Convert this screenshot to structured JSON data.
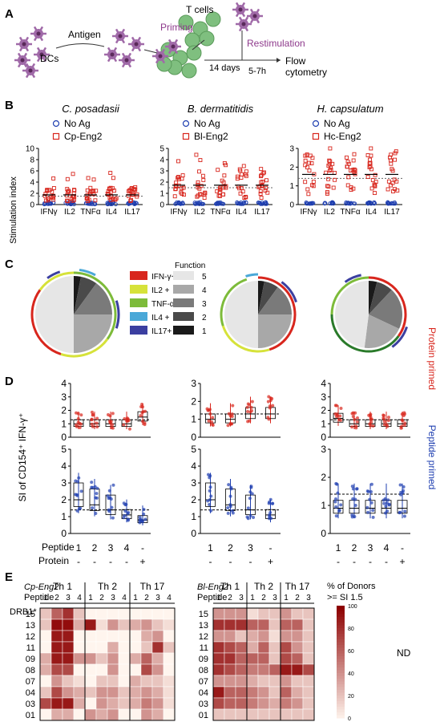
{
  "colors": {
    "red": "#d8261d",
    "blue": "#1f3fb0",
    "purple": "#8e3a8c",
    "green": "#6a9a2a",
    "dc": "#a06aa8",
    "tcell": "#7fbf7f"
  },
  "panel_a": {
    "label": "A",
    "dcs": "DCs",
    "antigen": "Antigen",
    "priming": "Priming",
    "tcells": "T cells",
    "restimulation": "Restimulation",
    "days14": "14 days",
    "hours": "5-7h",
    "flow1": "Flow",
    "flow2": "cytometry"
  },
  "panel_b": {
    "label": "B",
    "ylabel": "Stimulation index",
    "categories": [
      "IFNγ",
      "IL2",
      "TNFα",
      "IL4",
      "IL17"
    ],
    "noag": "No Ag",
    "charts": [
      {
        "title": "C. posadasii",
        "antigen": "Cp-Eng2",
        "ymax": 10,
        "ticks": [
          "0",
          "2",
          "4",
          "6",
          "8",
          "10"
        ],
        "threshold": 1.5
      },
      {
        "title": "B. dermatitidis",
        "antigen": "Bl-Eng2",
        "ymax": 5,
        "ticks": [
          "0",
          "1",
          "2",
          "3",
          "4",
          "5"
        ],
        "threshold": 1.5
      },
      {
        "title": "H. capsulatum",
        "antigen": "Hc-Eng2",
        "ymax": 3,
        "ticks": [
          "0",
          "1",
          "2",
          "3"
        ],
        "threshold": 1.4
      }
    ]
  },
  "panel_c": {
    "label": "C",
    "legend": [
      "IFN-γ+",
      "IL2 +",
      "TNF-α+",
      "IL4 +",
      "IL17+"
    ],
    "legend_colors": [
      "#d8261d",
      "#d6e23a",
      "#7dbb3a",
      "#4aa8d8",
      "#3b3fa0"
    ],
    "function_title": "Function",
    "function_levels": [
      "5",
      "4",
      "3",
      "2",
      "1"
    ],
    "function_colors": [
      "#1a1a1a",
      "#4a4a4a",
      "#7a7a7a",
      "#a8a8a8",
      "#e6e6e6"
    ]
  },
  "panel_d": {
    "label": "D",
    "ylabel": "SI  of CD154⁺ IFN-γ⁺",
    "protein_primed": "Protein primed",
    "peptide_primed": "Peptide primed",
    "peptide_label": "Peptide",
    "protein_label": "Protein",
    "charts": [
      {
        "peptide": [
          "1",
          "2",
          "3",
          "4",
          "-"
        ],
        "protein": [
          "-",
          "-",
          "-",
          "-",
          "+"
        ],
        "top_ticks": [
          "0",
          "1",
          "2",
          "3",
          "4"
        ],
        "bot_ticks": [
          "0",
          "1",
          "2",
          "3",
          "4",
          "5"
        ]
      },
      {
        "peptide": [
          "1",
          "2",
          "3",
          "-"
        ],
        "protein": [
          "-",
          "-",
          "-",
          "+"
        ],
        "top_ticks": [
          "0",
          "1",
          "2",
          "3"
        ],
        "bot_ticks": [
          "0",
          "1",
          "2",
          "3",
          "4",
          "5"
        ]
      },
      {
        "peptide": [
          "1",
          "2",
          "3",
          "4",
          "-"
        ],
        "protein": [
          "-",
          "-",
          "-",
          "-",
          "+"
        ],
        "top_ticks": [
          "0",
          "1",
          "2",
          "3",
          "4"
        ],
        "bot_ticks": [
          "0",
          "1",
          "2",
          "3"
        ]
      }
    ]
  },
  "panel_e": {
    "label": "E",
    "left_title": "Cp-Eng2",
    "right_title": "Bl-Eng2",
    "th_groups": [
      "Th 1",
      "Th 2",
      "Th 17"
    ],
    "peptide_label": "Peptide",
    "drb_label": "DRB1*",
    "left_peptides": [
      "1",
      "2",
      "3",
      "4"
    ],
    "right_peptides": [
      "1",
      "2",
      "3"
    ],
    "alleles": [
      "15",
      "13",
      "12",
      "11",
      "09",
      "08",
      "07",
      "04",
      "03",
      "01"
    ],
    "colorbar_title1": "% of Donors",
    "colorbar_title2": ">= SI 1.5",
    "colorbar_ticks": [
      "100",
      "80",
      "60",
      "40",
      "20",
      "0"
    ],
    "nd": "ND",
    "left_matrix": [
      [
        20,
        60,
        80,
        20,
        0,
        0,
        0,
        0,
        0,
        0,
        0,
        0
      ],
      [
        20,
        95,
        95,
        30,
        90,
        10,
        40,
        20,
        30,
        40,
        20,
        10
      ],
      [
        0,
        90,
        90,
        0,
        0,
        0,
        0,
        0,
        0,
        30,
        40,
        0
      ],
      [
        0,
        90,
        90,
        0,
        0,
        0,
        30,
        0,
        0,
        20,
        80,
        20
      ],
      [
        30,
        90,
        90,
        40,
        40,
        20,
        40,
        0,
        30,
        60,
        30,
        0
      ],
      [
        30,
        70,
        70,
        0,
        0,
        0,
        40,
        0,
        0,
        70,
        40,
        0
      ],
      [
        0,
        40,
        20,
        10,
        0,
        20,
        20,
        0,
        30,
        20,
        20,
        10
      ],
      [
        20,
        70,
        40,
        30,
        20,
        40,
        40,
        20,
        30,
        40,
        30,
        10
      ],
      [
        70,
        90,
        90,
        30,
        0,
        40,
        30,
        20,
        30,
        50,
        40,
        10
      ],
      [
        0,
        30,
        30,
        0,
        40,
        30,
        40,
        0,
        0,
        40,
        30,
        0
      ]
    ],
    "right_matrix": [
      [
        40,
        40,
        40,
        10,
        20,
        20,
        40,
        20,
        20
      ],
      [
        80,
        80,
        80,
        60,
        60,
        20,
        60,
        60,
        20
      ],
      [
        40,
        40,
        20,
        30,
        40,
        10,
        40,
        40,
        20
      ],
      [
        80,
        70,
        60,
        30,
        60,
        20,
        70,
        40,
        20
      ],
      [
        80,
        80,
        60,
        60,
        60,
        20,
        70,
        60,
        20
      ],
      [
        80,
        70,
        60,
        50,
        50,
        60,
        90,
        90,
        70
      ],
      [
        40,
        40,
        40,
        30,
        20,
        20,
        40,
        20,
        20
      ],
      [
        90,
        60,
        60,
        50,
        40,
        20,
        60,
        30,
        20
      ],
      [
        70,
        60,
        60,
        50,
        40,
        30,
        50,
        40,
        20
      ],
      [
        20,
        20,
        20,
        20,
        20,
        20,
        20,
        20,
        20
      ]
    ]
  }
}
